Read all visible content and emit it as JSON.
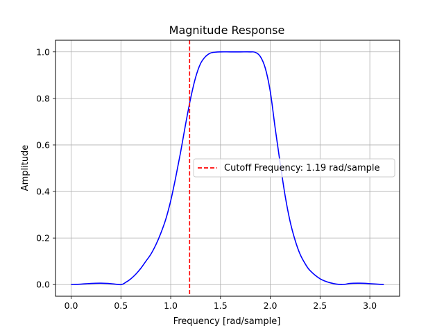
{
  "chart_data": {
    "type": "line",
    "title": "Magnitude Response",
    "xlabel": "Frequency [rad/sample]",
    "ylabel": "Amplitude",
    "xlim": [
      -0.157,
      3.299
    ],
    "ylim": [
      -0.05,
      1.05
    ],
    "xticks": [
      0.0,
      0.5,
      1.0,
      1.5,
      2.0,
      2.5,
      3.0
    ],
    "xtick_labels": [
      "0.0",
      "0.5",
      "1.0",
      "1.5",
      "2.0",
      "2.5",
      "3.0"
    ],
    "yticks": [
      0.0,
      0.2,
      0.4,
      0.6,
      0.8,
      1.0
    ],
    "ytick_labels": [
      "0.0",
      "0.2",
      "0.4",
      "0.6",
      "0.8",
      "1.0"
    ],
    "grid": true,
    "legend_position": "center-right",
    "series": [
      {
        "color": "#0000ff",
        "style": "solid",
        "x": [
          0.0,
          0.1,
          0.2,
          0.3,
          0.4,
          0.5,
          0.55,
          0.6,
          0.65,
          0.7,
          0.75,
          0.8,
          0.85,
          0.9,
          0.95,
          1.0,
          1.05,
          1.1,
          1.15,
          1.2,
          1.25,
          1.3,
          1.35,
          1.4,
          1.45,
          1.5,
          1.6,
          1.7,
          1.8,
          1.85,
          1.9,
          1.95,
          2.0,
          2.05,
          2.1,
          2.15,
          2.2,
          2.25,
          2.3,
          2.35,
          2.4,
          2.5,
          2.6,
          2.72,
          2.8,
          2.9,
          3.0,
          3.14
        ],
        "y": [
          0.0,
          0.002,
          0.005,
          0.006,
          0.004,
          0.0,
          0.01,
          0.025,
          0.045,
          0.07,
          0.1,
          0.13,
          0.17,
          0.22,
          0.28,
          0.36,
          0.46,
          0.57,
          0.69,
          0.8,
          0.89,
          0.95,
          0.98,
          0.995,
          0.999,
          1.0,
          1.0,
          1.0,
          1.0,
          0.998,
          0.98,
          0.93,
          0.83,
          0.67,
          0.52,
          0.38,
          0.27,
          0.19,
          0.13,
          0.09,
          0.06,
          0.025,
          0.008,
          0.0,
          0.005,
          0.006,
          0.004,
          0.0
        ]
      },
      {
        "name": "Cutoff Frequency: 1.19 rad/sample",
        "color": "#ff0000",
        "style": "dashed",
        "vline_x": 1.19
      }
    ]
  }
}
